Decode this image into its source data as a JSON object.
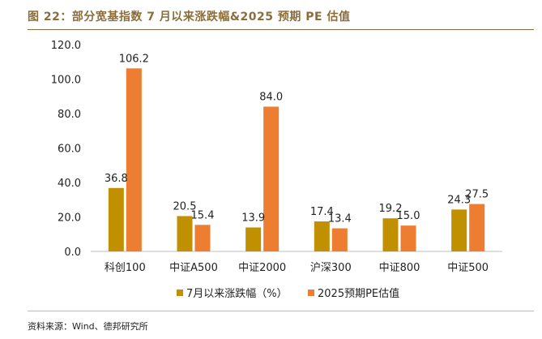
{
  "header": {
    "title": "图 22：部分宽基指数 7 月以来涨跌幅&2025 预期 PE 估值"
  },
  "footer": {
    "source": "资料来源：Wind、德邦研究所"
  },
  "colors": {
    "series1": "#C09000",
    "series2": "#ED7D31",
    "title": "#8a6d3b"
  },
  "chart_data": {
    "type": "bar",
    "categories": [
      "科创100",
      "中证A500",
      "中证2000",
      "沪深300",
      "中证800",
      "中证500"
    ],
    "series": [
      {
        "name": "7月以来涨跌幅（%）",
        "values": [
          36.8,
          20.5,
          13.9,
          17.4,
          19.2,
          24.3
        ]
      },
      {
        "name": "2025预期PE估值",
        "values": [
          106.2,
          15.4,
          84.0,
          13.4,
          15.0,
          27.5
        ]
      }
    ],
    "value_labels": [
      [
        "36.8",
        "20.5",
        "13.9",
        "17.4",
        "19.2",
        "24.3"
      ],
      [
        "106.2",
        "15.4",
        "84.0",
        "13.4",
        "15.0",
        "27.5"
      ]
    ],
    "yticks": [
      "0.0",
      "20.0",
      "40.0",
      "60.0",
      "80.0",
      "100.0",
      "120.0"
    ],
    "ylim": [
      0,
      120
    ],
    "grid": false,
    "legend_position": "bottom"
  }
}
